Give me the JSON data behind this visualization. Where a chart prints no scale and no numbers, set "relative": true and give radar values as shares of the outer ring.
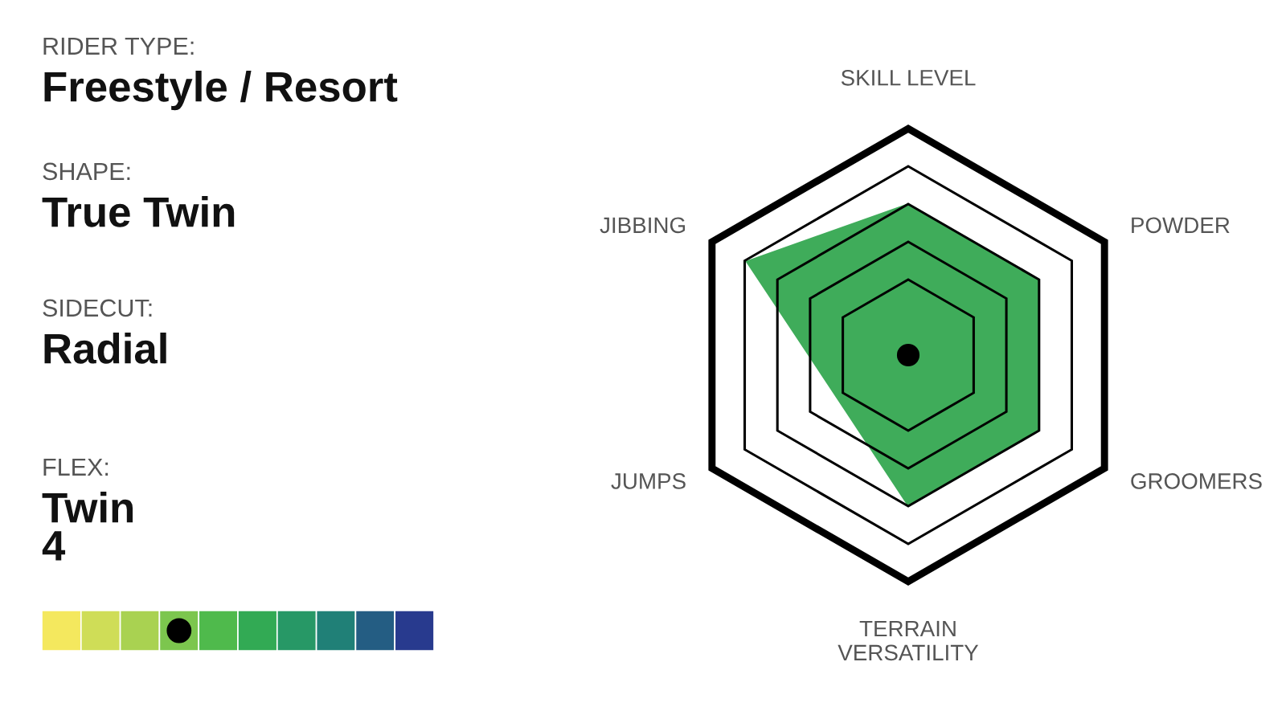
{
  "chart_data": [
    {
      "type": "other",
      "annotations": [
        "RIDER TYPE:",
        "Freestyle / Resort",
        "SHAPE:",
        "True Twin",
        "SIDECUT:",
        "Radial",
        "FLEX:",
        "Twin\n4"
      ]
    },
    {
      "type": "radar",
      "relative": true,
      "categories": [
        "SKILL LEVEL",
        "POWDER",
        "GROOMERS",
        "TERRAIN\nVERSATILITY",
        "JUMPS",
        "JIBBING"
      ],
      "series": [
        {
          "color": "#3fac5a",
          "values": [
            0.67,
            0.67,
            0.67,
            0.67,
            0.37,
            0.83
          ]
        }
      ]
    }
  ]
}
